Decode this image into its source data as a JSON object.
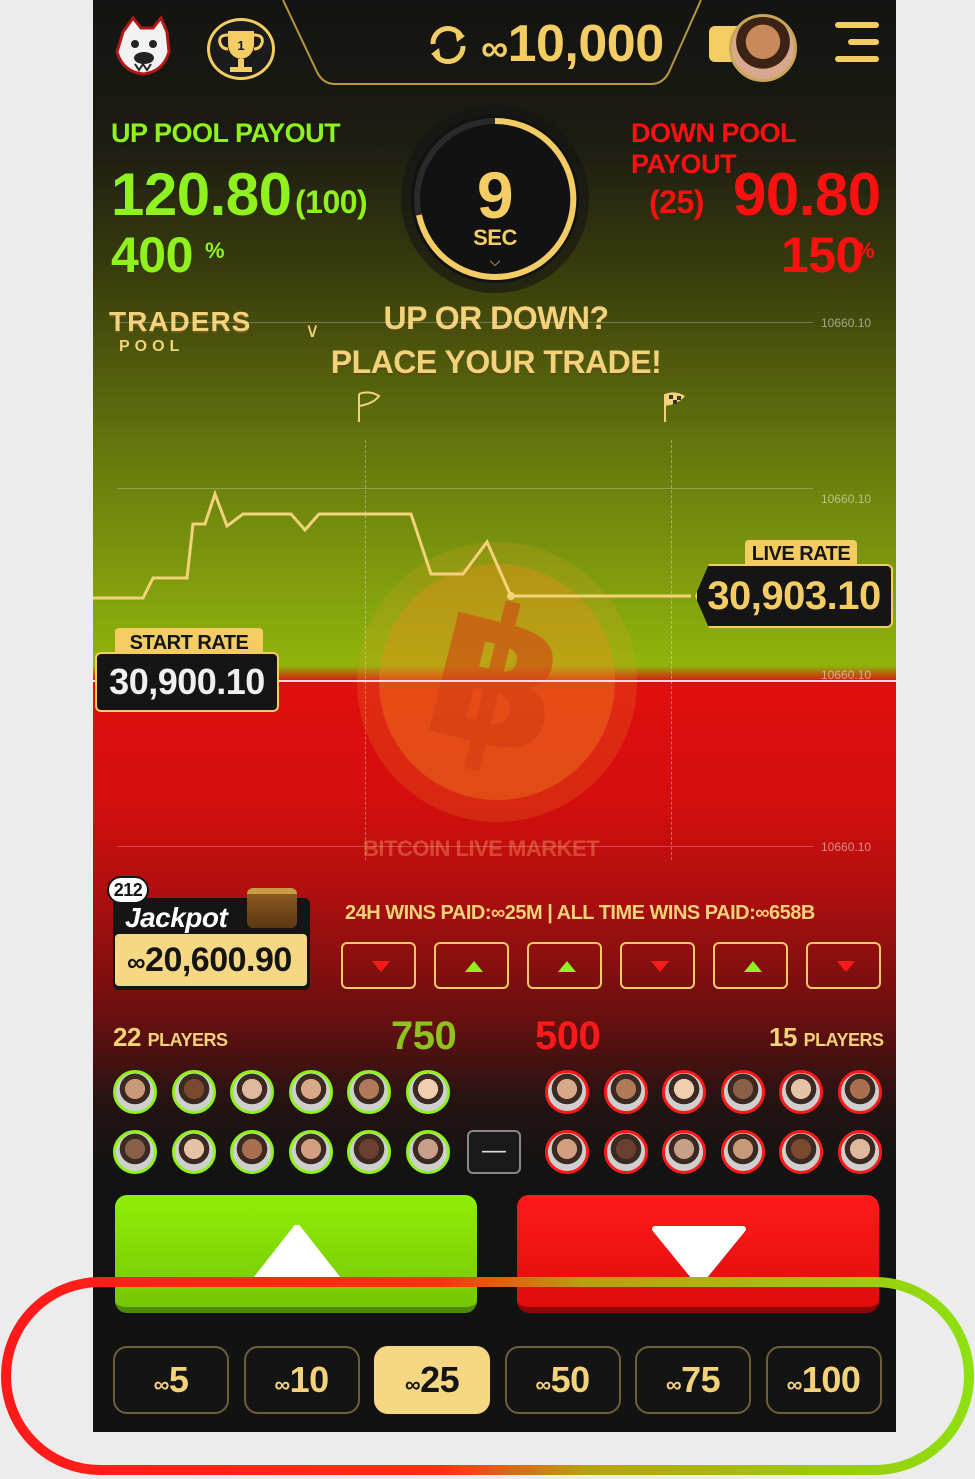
{
  "header": {
    "balance": "10,000"
  },
  "payouts": {
    "up_label": "UP POOL PAYOUT",
    "up_amount": "120.80",
    "up_count": "(100)",
    "up_percent": "400",
    "down_label": "DOWN POOL PAYOUT",
    "down_amount": "90.80",
    "down_count": "(25)",
    "down_percent": "150",
    "percent_sign": "%"
  },
  "timer": {
    "value": "9",
    "unit": "SEC"
  },
  "brand": {
    "name": "TRADERS",
    "sub": "POOL"
  },
  "prompt": {
    "line1": "UP OR DOWN?",
    "line2": "PLACE YOUR TRADE!"
  },
  "chart": {
    "tick_top": "10660.10",
    "tick_mid": "10660.10",
    "tick_center": "10660.10",
    "tick_bottom": "10660.10",
    "market_label": "BITCOIN LIVE MARKET",
    "live_rate_label": "LIVE RATE",
    "live_rate": "30,903.10",
    "start_rate_label": "START RATE",
    "start_rate": "30,900.10"
  },
  "jackpot": {
    "badge": "212",
    "label": "Jackpot",
    "amount": "20,600.90"
  },
  "wins": {
    "h24": "24H WINS PAID:",
    "h24_value": "25M",
    "all": "| ALL TIME WINS PAID:",
    "all_value": "658B"
  },
  "history": [
    "down",
    "up",
    "up",
    "down",
    "up",
    "down"
  ],
  "players": {
    "up_count": "22",
    "down_count": "15",
    "label": "PLAYERS",
    "up_total": "750",
    "down_total": "500",
    "collapse": "—"
  },
  "amounts": {
    "options": [
      "5",
      "10",
      "25",
      "50",
      "75",
      "100"
    ],
    "selected": "25"
  },
  "colors": {
    "gold": "#f3cd63",
    "up": "#8ff21e",
    "down": "#ff1010"
  }
}
